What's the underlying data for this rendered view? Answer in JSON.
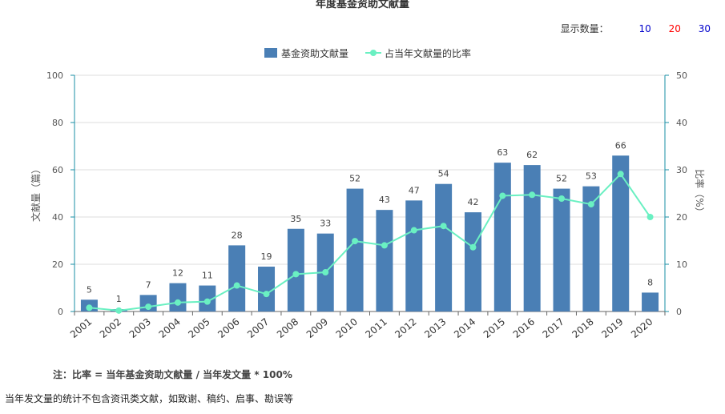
{
  "header": {
    "title": "年度基金资助文献量",
    "count_label": "显示数量：",
    "count_options": [
      {
        "label": "10",
        "color": "#0000cc"
      },
      {
        "label": "20",
        "color": "#ff0000"
      },
      {
        "label": "30",
        "color": "#0000cc"
      }
    ]
  },
  "notes": {
    "formula": "注：比率 = 当年基金资助文献量 / 当年发文量 * 100%",
    "exclusion": "当年发文量的统计不包含资讯类文献，如致谢、稿约、启事、勘误等"
  },
  "colors": {
    "bar": "#4a7fb5",
    "line": "#6af0c2",
    "axis": "#1a8fa6",
    "grid": "#dddddd"
  },
  "chart_data": {
    "type": "bar",
    "categories": [
      "2001",
      "2002",
      "2003",
      "2004",
      "2005",
      "2006",
      "2007",
      "2008",
      "2009",
      "2010",
      "2011",
      "2012",
      "2013",
      "2014",
      "2015",
      "2016",
      "2017",
      "2018",
      "2019",
      "2020"
    ],
    "series": [
      {
        "name": "基金资助文献量",
        "type": "bar",
        "axis": "left",
        "values": [
          5,
          1,
          7,
          12,
          11,
          28,
          19,
          35,
          33,
          52,
          43,
          47,
          54,
          42,
          63,
          62,
          52,
          53,
          66,
          8
        ],
        "labels": [
          "5",
          "1",
          "7",
          "12",
          "11",
          "28",
          "19",
          "35",
          "33",
          "52",
          "43",
          "47",
          "54",
          "42",
          "63",
          "62",
          "52",
          "53",
          "66",
          "8"
        ]
      },
      {
        "name": "占当年文献量的比率",
        "type": "line",
        "axis": "right",
        "values": [
          0.8,
          0.2,
          1.0,
          1.9,
          2.1,
          5.5,
          3.7,
          7.9,
          8.3,
          14.9,
          14.0,
          17.2,
          18.1,
          13.6,
          24.5,
          24.7,
          23.9,
          22.7,
          29.1,
          20.0
        ]
      }
    ],
    "ylabel": "文献量（篇）",
    "y2label": "比率（%）",
    "ylim": [
      0,
      100
    ],
    "y2lim": [
      0,
      50
    ],
    "yticks": [
      "0",
      "20",
      "40",
      "60",
      "80",
      "100"
    ],
    "y2ticks": [
      "0",
      "10",
      "20",
      "30",
      "40",
      "50"
    ],
    "grid": true,
    "legend_position": "top-center"
  }
}
